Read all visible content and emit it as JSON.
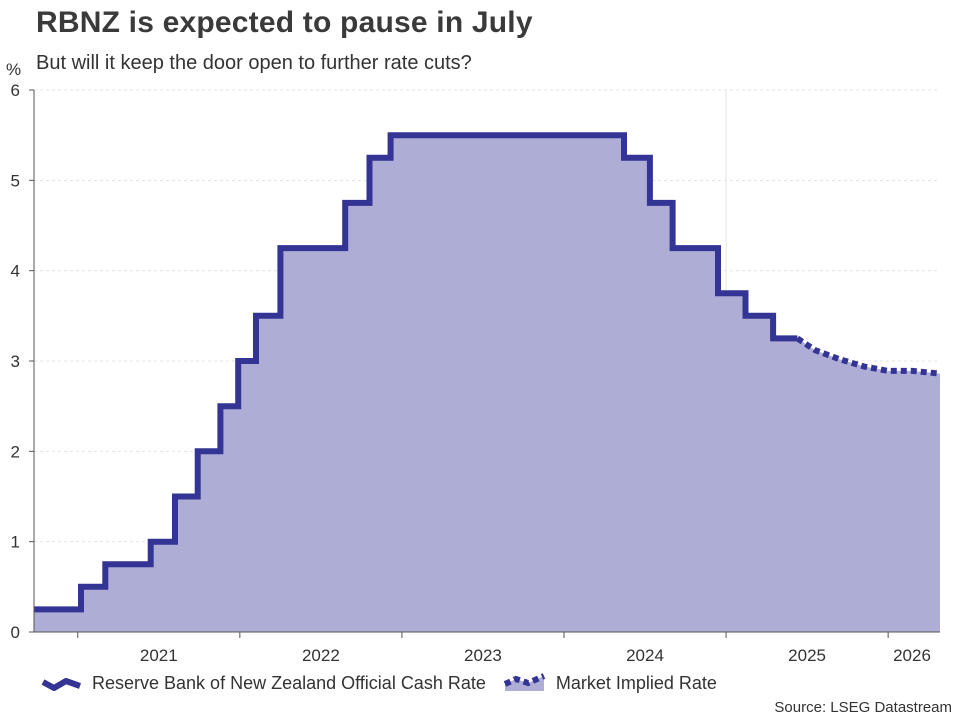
{
  "title": "RBNZ is expected to pause in July",
  "subtitle": "But will it keep the door open to further rate cuts?",
  "source": "Source: LSEG Datastream",
  "colors": {
    "line": "#343494",
    "fill": "#adadd6",
    "grid": "#e3e3e3",
    "axis": "#555555"
  },
  "chart_data": {
    "type": "area",
    "ylabel": "%",
    "ylim": [
      0,
      6
    ],
    "yticks": [
      0,
      1,
      2,
      3,
      4,
      5,
      6
    ],
    "xlim": [
      2020.73,
      2026.32
    ],
    "x_tick_labels": [
      "2021",
      "2022",
      "2023",
      "2024",
      "2025",
      "2026"
    ],
    "legend_position": "bottom-left",
    "series": [
      {
        "name": "Reserve Bank of New Zealand Official Cash Rate",
        "style": "solid-step",
        "x": [
          2020.73,
          2021.02,
          2021.02,
          2021.17,
          2021.17,
          2021.45,
          2021.45,
          2021.6,
          2021.6,
          2021.74,
          2021.74,
          2021.88,
          2021.88,
          2021.99,
          2021.99,
          2022.1,
          2022.1,
          2022.25,
          2022.25,
          2022.38,
          2022.38,
          2022.65,
          2022.65,
          2022.8,
          2022.8,
          2022.93,
          2022.93,
          2024.37,
          2024.37,
          2024.53,
          2024.53,
          2024.67,
          2024.67,
          2024.95,
          2024.95,
          2025.12,
          2025.12,
          2025.29,
          2025.29,
          2025.44
        ],
        "y": [
          0.25,
          0.25,
          0.5,
          0.5,
          0.75,
          0.75,
          1.0,
          1.0,
          1.5,
          1.5,
          2.0,
          2.0,
          2.5,
          2.5,
          3.0,
          3.0,
          3.5,
          3.5,
          4.25,
          4.25,
          4.25,
          4.25,
          4.75,
          4.75,
          5.25,
          5.25,
          5.5,
          5.5,
          5.25,
          5.25,
          4.75,
          4.75,
          4.25,
          4.25,
          3.75,
          3.75,
          3.5,
          3.5,
          3.25,
          3.25
        ]
      },
      {
        "name": "Market Implied Rate",
        "style": "dotted",
        "x": [
          2025.44,
          2025.55,
          2025.7,
          2025.85,
          2026.0,
          2026.15,
          2026.32
        ],
        "y": [
          3.25,
          3.12,
          3.02,
          2.94,
          2.89,
          2.89,
          2.86
        ]
      }
    ]
  }
}
